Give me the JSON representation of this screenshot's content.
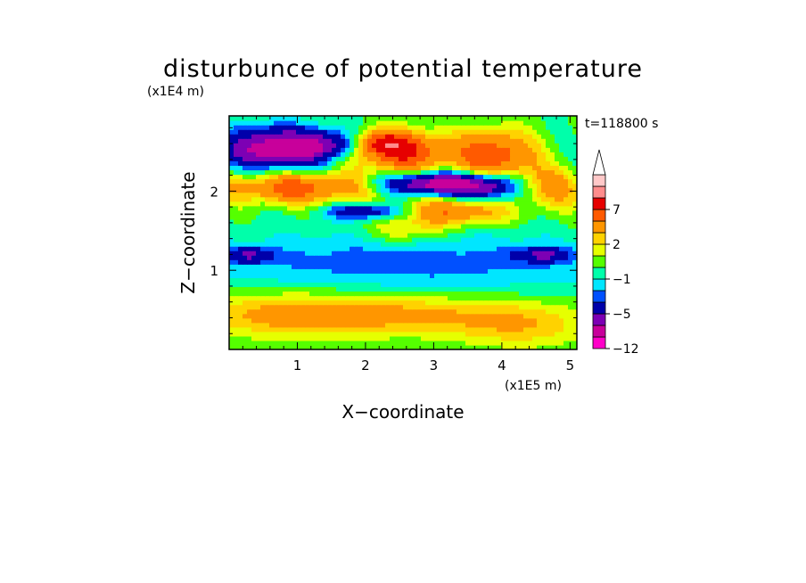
{
  "chart_data": {
    "type": "heatmap",
    "title": "disturbunce of potential temperature",
    "time_label": "t=118800 s",
    "xlabel": "X−coordinate",
    "ylabel": "Z−coordinate",
    "x_unit": "(x1E5 m)",
    "y_unit": "(x1E4 m)",
    "x_ticks": [
      1,
      2,
      3,
      4,
      5
    ],
    "x_tick_labels": [
      "1",
      "2",
      "3",
      "4",
      "5"
    ],
    "y_ticks": [
      1,
      2
    ],
    "y_tick_labels": [
      "1",
      "2"
    ],
    "xlim": [
      0,
      5.1
    ],
    "ylim": [
      0,
      2.95
    ],
    "colorbar": {
      "levels": [
        -12,
        -10,
        -7,
        -5,
        -3,
        -2,
        -1,
        0,
        1,
        2,
        3,
        5,
        7,
        10,
        12
      ],
      "tick_labels": [
        "−12",
        "−5",
        "−1",
        "2",
        "7"
      ],
      "tick_values": [
        -12,
        -5,
        -1,
        2,
        7
      ],
      "colors": [
        "#ff00c8",
        "#c8009b",
        "#7d00b4",
        "#0000aa",
        "#0050ff",
        "#00e6ff",
        "#00ffaa",
        "#55ff00",
        "#e6ff00",
        "#ffd200",
        "#ff9600",
        "#ff5a00",
        "#e60000",
        "#ff8c8c",
        "#ffc8c8"
      ],
      "extend": "max"
    },
    "features": [
      {
        "x": 0.7,
        "z": 2.55,
        "amp": -9.0,
        "sx": 0.55,
        "sz": 0.18
      },
      {
        "x": 1.5,
        "z": 2.6,
        "amp": -4.0,
        "sx": 0.3,
        "sz": 0.12
      },
      {
        "x": 2.55,
        "z": 2.5,
        "amp": 7.0,
        "sx": 0.5,
        "sz": 0.18
      },
      {
        "x": 3.9,
        "z": 2.45,
        "amp": 6.5,
        "sx": 0.4,
        "sz": 0.22
      },
      {
        "x": 2.25,
        "z": 2.62,
        "amp": 5.0,
        "sx": 0.25,
        "sz": 0.1
      },
      {
        "x": 1.0,
        "z": 2.05,
        "amp": 6.0,
        "sx": 0.75,
        "sz": 0.14
      },
      {
        "x": 4.8,
        "z": 2.05,
        "amp": 3.5,
        "sx": 0.35,
        "sz": 0.18
      },
      {
        "x": 3.05,
        "z": 2.1,
        "amp": -9.0,
        "sx": 0.55,
        "sz": 0.1
      },
      {
        "x": 3.8,
        "z": 2.05,
        "amp": -5.0,
        "sx": 0.3,
        "sz": 0.12
      },
      {
        "x": 2.0,
        "z": 1.75,
        "amp": -5.0,
        "sx": 0.4,
        "sz": 0.07
      },
      {
        "x": 3.3,
        "z": 1.75,
        "amp": 5.0,
        "sx": 0.55,
        "sz": 0.12
      },
      {
        "x": 2.6,
        "z": 1.5,
        "amp": 2.5,
        "sx": 0.4,
        "sz": 0.12
      },
      {
        "x": 4.6,
        "z": 1.2,
        "amp": -4.0,
        "sx": 0.3,
        "sz": 0.07
      },
      {
        "x": 0.3,
        "z": 1.2,
        "amp": -4.0,
        "sx": 0.25,
        "sz": 0.07
      },
      {
        "x": 2.5,
        "z": 1.1,
        "amp": -2.5,
        "sx": 2.4,
        "sz": 0.28
      },
      {
        "x": 0.8,
        "z": 0.45,
        "amp": 3.2,
        "sx": 1.0,
        "sz": 0.2
      },
      {
        "x": 2.6,
        "z": 0.45,
        "amp": 3.0,
        "sx": 1.2,
        "sz": 0.18
      },
      {
        "x": 4.3,
        "z": 0.3,
        "amp": 2.5,
        "sx": 0.7,
        "sz": 0.2
      }
    ]
  }
}
